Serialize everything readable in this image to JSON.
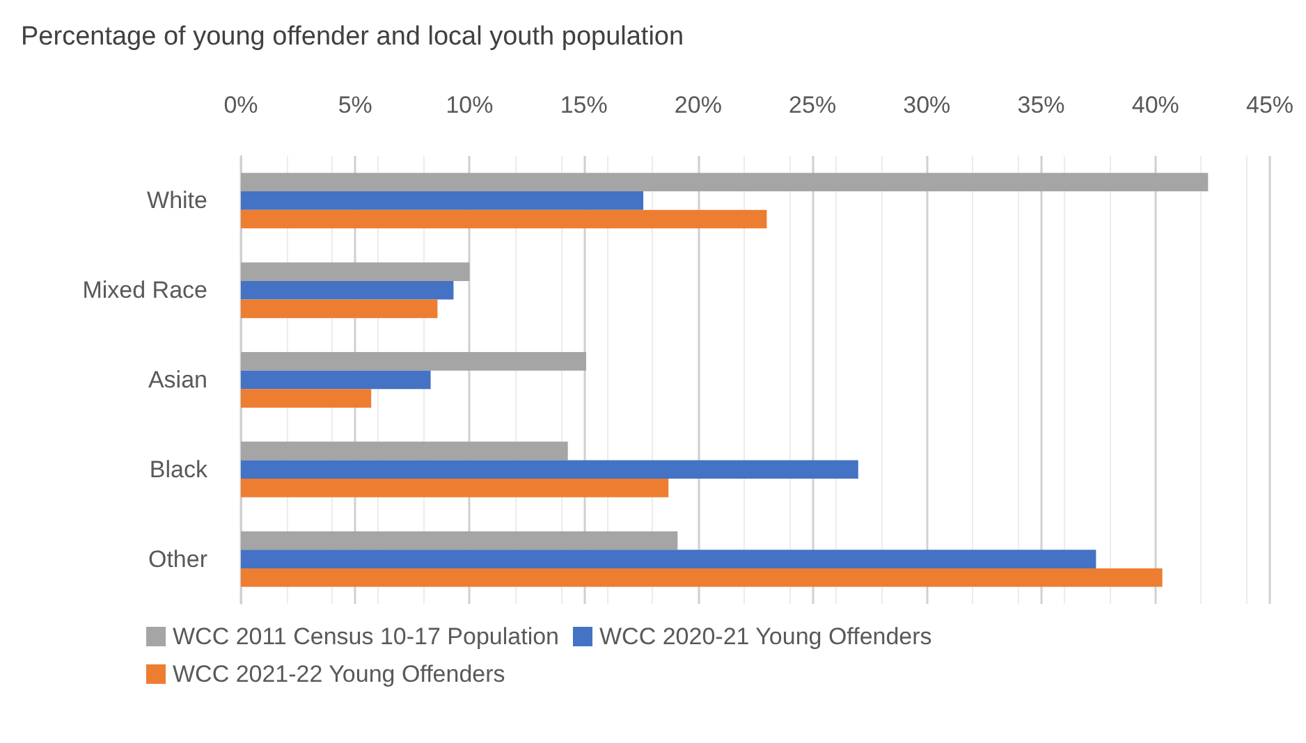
{
  "chart_data": {
    "type": "bar",
    "orientation": "horizontal",
    "title": "Percentage of young offender and local youth population",
    "categories": [
      "White",
      "Mixed Race",
      "Asian",
      "Black",
      "Other"
    ],
    "series": [
      {
        "name": "WCC 2011 Census 10-17 Population",
        "color": "#a5a5a5",
        "values": [
          42.3,
          10.0,
          15.1,
          14.3,
          19.1
        ]
      },
      {
        "name": "WCC 2020-21 Young Offenders",
        "color": "#4472c4",
        "values": [
          17.6,
          9.3,
          8.3,
          27.0,
          37.4
        ]
      },
      {
        "name": "WCC 2021-22 Young Offenders",
        "color": "#ed7d31",
        "values": [
          23.0,
          8.6,
          5.7,
          18.7,
          40.3
        ]
      }
    ],
    "xlim": [
      0,
      45
    ],
    "xticks": [
      {
        "value": 0,
        "label": "0%"
      },
      {
        "value": 5,
        "label": "5%"
      },
      {
        "value": 10,
        "label": "10%"
      },
      {
        "value": 15,
        "label": "15%"
      },
      {
        "value": 20,
        "label": "20%"
      },
      {
        "value": 25,
        "label": "25%"
      },
      {
        "value": 30,
        "label": "30%"
      },
      {
        "value": 35,
        "label": "35%"
      },
      {
        "value": 40,
        "label": "40%"
      },
      {
        "value": 45,
        "label": "45%"
      }
    ],
    "grid": "x",
    "legend": "bottom left"
  }
}
